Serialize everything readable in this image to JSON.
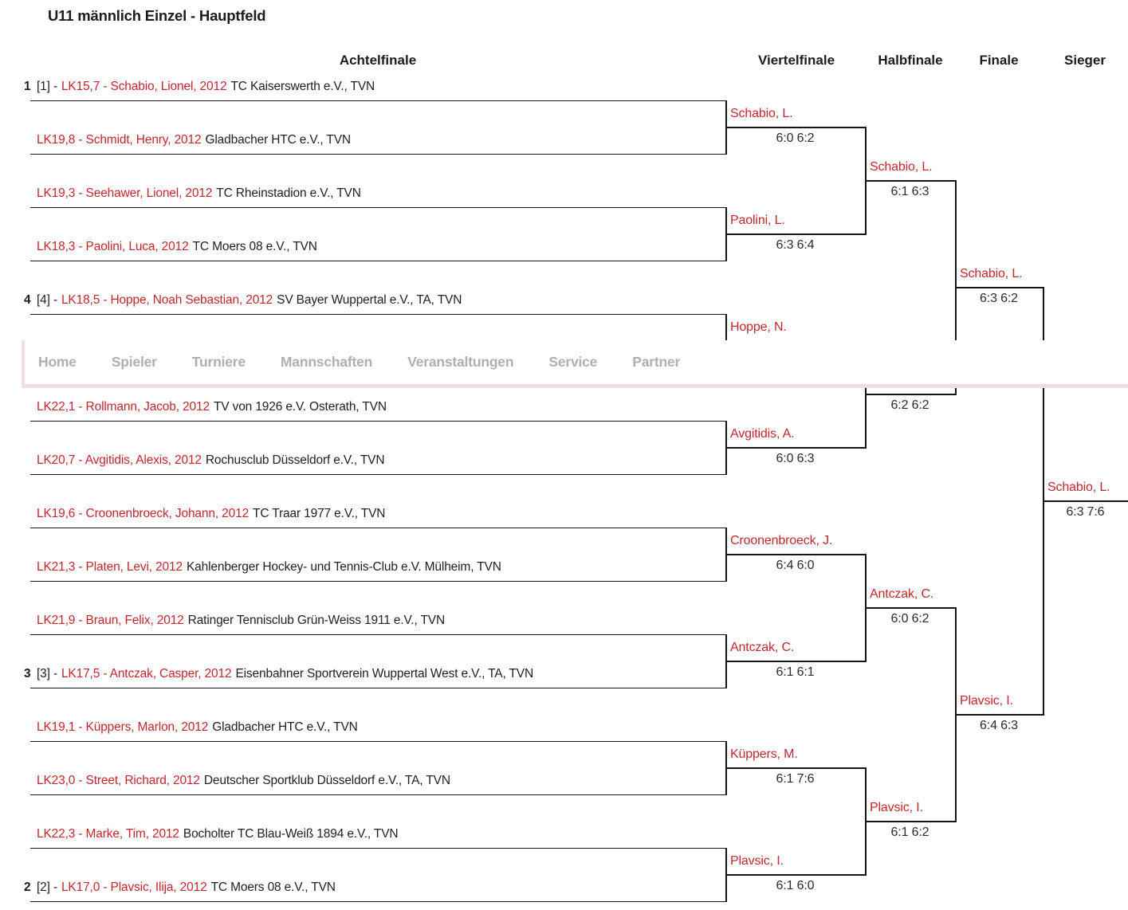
{
  "page": {
    "title": "U11 männlich Einzel - Hauptfeld"
  },
  "colors": {
    "accent_red": "#c3262c",
    "text_dark": "#212121",
    "line_black": "#141414",
    "nav_text_gray": "#b1aeae",
    "nav_pink": "#f3dcdc"
  },
  "navbar": {
    "items": [
      "Home",
      "Spieler",
      "Turniere",
      "Mannschaften",
      "Veranstaltungen",
      "Service",
      "Partner"
    ]
  },
  "round_headers": [
    "Achtelfinale",
    "Viertelfinale",
    "Halbfinale",
    "Finale",
    "Sieger"
  ],
  "bracket": {
    "players": [
      {
        "rank": "1",
        "seed": "[1] -",
        "entry": "LK15,7 - Schabio, Lionel, 2012",
        "club": "TC Kaiserswerth e.V., TVN"
      },
      {
        "rank": "",
        "seed": "",
        "entry": "LK19,8 - Schmidt, Henry, 2012",
        "club": "Gladbacher HTC e.V., TVN"
      },
      {
        "rank": "",
        "seed": "",
        "entry": "LK19,3 - Seehawer, Lionel, 2012",
        "club": "TC Rheinstadion e.V., TVN"
      },
      {
        "rank": "",
        "seed": "",
        "entry": "LK18,3 - Paolini, Luca, 2012",
        "club": "TC Moers 08 e.V., TVN"
      },
      {
        "rank": "4",
        "seed": "[4] -",
        "entry": "LK18,5 - Hoppe, Noah Sebastian, 2012",
        "club": "SV Bayer Wuppertal e.V., TA, TVN"
      },
      {
        "rank": "",
        "seed": "",
        "entry": "",
        "club": ""
      },
      {
        "rank": "",
        "seed": "",
        "entry": "LK22,1 - Rollmann, Jacob, 2012",
        "club": "TV von 1926 e.V. Osterath, TVN"
      },
      {
        "rank": "",
        "seed": "",
        "entry": "LK20,7 - Avgitidis, Alexis, 2012",
        "club": "Rochusclub Düsseldorf e.V., TVN"
      },
      {
        "rank": "",
        "seed": "",
        "entry": "LK19,6 - Croonenbroeck, Johann, 2012",
        "club": "TC Traar 1977 e.V., TVN"
      },
      {
        "rank": "",
        "seed": "",
        "entry": "LK21,3 - Platen, Levi, 2012",
        "club": "Kahlenberger Hockey- und Tennis-Club e.V. Mülheim, TVN"
      },
      {
        "rank": "",
        "seed": "",
        "entry": "LK21,9 - Braun, Felix, 2012",
        "club": "Ratinger Tennisclub Grün-Weiss 1911 e.V., TVN"
      },
      {
        "rank": "3",
        "seed": "[3] -",
        "entry": "LK17,5 - Antczak, Casper, 2012",
        "club": "Eisenbahner Sportverein Wuppertal West e.V., TA, TVN"
      },
      {
        "rank": "",
        "seed": "",
        "entry": "LK19,1 - Küppers, Marlon, 2012",
        "club": "Gladbacher HTC e.V., TVN"
      },
      {
        "rank": "",
        "seed": "",
        "entry": "LK23,0 - Street, Richard, 2012",
        "club": "Deutscher Sportklub Düsseldorf e.V., TA, TVN"
      },
      {
        "rank": "",
        "seed": "",
        "entry": "LK22,3 - Marke, Tim, 2012",
        "club": "Bocholter TC Blau-Weiß 1894 e.V., TVN"
      },
      {
        "rank": "2",
        "seed": "[2] -",
        "entry": "LK17,0 - Plavsic, Ilija, 2012",
        "club": "TC Moers 08 e.V., TVN"
      }
    ],
    "viertelfinale": [
      {
        "name": "Schabio, L.",
        "score": "6:0 6:2"
      },
      {
        "name": "Paolini, L.",
        "score": "6:3 6:4"
      },
      {
        "name": "Hoppe, N.",
        "score": ""
      },
      {
        "name": "Avgitidis, A.",
        "score": "6:0 6:3"
      },
      {
        "name": "Croonenbroeck, J.",
        "score": "6:4 6:0"
      },
      {
        "name": "Antczak, C.",
        "score": "6:1 6:1"
      },
      {
        "name": "Küppers, M.",
        "score": "6:1 7:6"
      },
      {
        "name": "Plavsic, I.",
        "score": "6:1 6:0"
      }
    ],
    "halbfinale": [
      {
        "name": "Schabio, L.",
        "score": "6:1 6:3"
      },
      {
        "name": "",
        "score": "6:2 6:2"
      },
      {
        "name": "Antczak, C.",
        "score": "6:0 6:2"
      },
      {
        "name": "Plavsic, I.",
        "score": "6:1 6:2"
      }
    ],
    "finale": [
      {
        "name": "Schabio, L.",
        "score": "6:3 6:2"
      },
      {
        "name": "Plavsic, I.",
        "score": "6:4 6:3"
      }
    ],
    "sieger": [
      {
        "name": "Schabio, L.",
        "score": "6:3 7:6"
      }
    ]
  }
}
